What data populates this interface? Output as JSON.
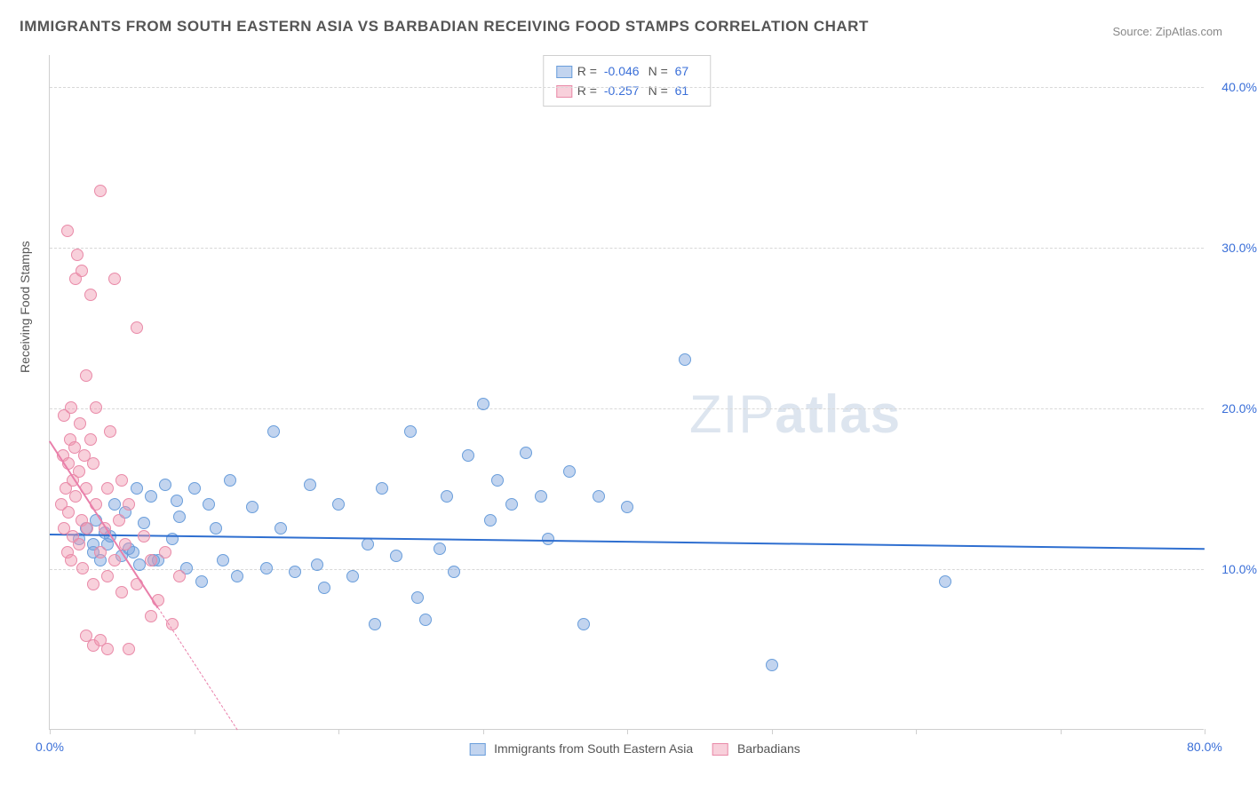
{
  "title": "IMMIGRANTS FROM SOUTH EASTERN ASIA VS BARBADIAN RECEIVING FOOD STAMPS CORRELATION CHART",
  "source": "Source: ZipAtlas.com",
  "y_axis_label": "Receiving Food Stamps",
  "watermark_light": "ZIP",
  "watermark_bold": "atlas",
  "chart": {
    "type": "scatter",
    "background_color": "#ffffff",
    "grid_color": "#d8d8d8",
    "axis_color": "#cfcfcf",
    "tick_label_color": "#3a6fd8",
    "xlim": [
      0,
      80
    ],
    "ylim": [
      0,
      42
    ],
    "x_ticks": [
      0,
      10,
      20,
      30,
      40,
      50,
      60,
      70,
      80
    ],
    "x_tick_labels": {
      "0": "0.0%",
      "80": "80.0%"
    },
    "y_gridlines": [
      10,
      20,
      30,
      40
    ],
    "y_tick_labels": {
      "10": "10.0%",
      "20": "20.0%",
      "30": "30.0%",
      "40": "40.0%"
    },
    "marker_radius": 7,
    "marker_opacity": 0.55,
    "series": [
      {
        "name": "Immigrants from South Eastern Asia",
        "short": "sea",
        "color_fill": "rgba(120,160,220,0.45)",
        "color_stroke": "#6a9edb",
        "R": "-0.046",
        "N": "67",
        "trend": {
          "x1": 0,
          "y1": 12.2,
          "x2": 80,
          "y2": 11.3,
          "solid": true,
          "color": "#2f6fd0",
          "width": 2
        },
        "points": [
          [
            2,
            11.8
          ],
          [
            2.5,
            12.5
          ],
          [
            3,
            11
          ],
          [
            3.2,
            13
          ],
          [
            3.5,
            10.5
          ],
          [
            3.8,
            12.2
          ],
          [
            4,
            11.5
          ],
          [
            4.5,
            14
          ],
          [
            5,
            10.8
          ],
          [
            5.2,
            13.5
          ],
          [
            5.5,
            11.2
          ],
          [
            6,
            15
          ],
          [
            6.2,
            10.2
          ],
          [
            6.5,
            12.8
          ],
          [
            7,
            14.5
          ],
          [
            7.5,
            10.5
          ],
          [
            8,
            15.2
          ],
          [
            8.5,
            11.8
          ],
          [
            9,
            13.2
          ],
          [
            9.5,
            10
          ],
          [
            10,
            15
          ],
          [
            10.5,
            9.2
          ],
          [
            11,
            14
          ],
          [
            12,
            10.5
          ],
          [
            12.5,
            15.5
          ],
          [
            13,
            9.5
          ],
          [
            14,
            13.8
          ],
          [
            15,
            10
          ],
          [
            15.5,
            18.5
          ],
          [
            16,
            12.5
          ],
          [
            17,
            9.8
          ],
          [
            18,
            15.2
          ],
          [
            18.5,
            10.2
          ],
          [
            19,
            8.8
          ],
          [
            20,
            14
          ],
          [
            21,
            9.5
          ],
          [
            22,
            11.5
          ],
          [
            22.5,
            6.5
          ],
          [
            23,
            15
          ],
          [
            24,
            10.8
          ],
          [
            25,
            18.5
          ],
          [
            25.5,
            8.2
          ],
          [
            26,
            6.8
          ],
          [
            27,
            11.2
          ],
          [
            27.5,
            14.5
          ],
          [
            28,
            9.8
          ],
          [
            29,
            17
          ],
          [
            30,
            20.2
          ],
          [
            30.5,
            13
          ],
          [
            31,
            15.5
          ],
          [
            32,
            14
          ],
          [
            33,
            17.2
          ],
          [
            34,
            14.5
          ],
          [
            34.5,
            11.8
          ],
          [
            36,
            16
          ],
          [
            37,
            6.5
          ],
          [
            38,
            14.5
          ],
          [
            40,
            13.8
          ],
          [
            44,
            23
          ],
          [
            50,
            4
          ],
          [
            62,
            9.2
          ],
          [
            3,
            11.5
          ],
          [
            4.2,
            12
          ],
          [
            5.8,
            11
          ],
          [
            7.2,
            10.5
          ],
          [
            8.8,
            14.2
          ],
          [
            11.5,
            12.5
          ]
        ]
      },
      {
        "name": "Barbadians",
        "short": "barb",
        "color_fill": "rgba(240,150,175,0.45)",
        "color_stroke": "#e98aa8",
        "R": "-0.257",
        "N": "61",
        "trend": {
          "x1": 0,
          "y1": 18,
          "x2": 13,
          "y2": 0,
          "solid_until_x": 7.5,
          "color": "#e97faa",
          "width": 1.5
        },
        "points": [
          [
            0.8,
            14
          ],
          [
            0.9,
            17
          ],
          [
            1,
            12.5
          ],
          [
            1,
            19.5
          ],
          [
            1.1,
            15
          ],
          [
            1.2,
            11
          ],
          [
            1.2,
            31
          ],
          [
            1.3,
            16.5
          ],
          [
            1.3,
            13.5
          ],
          [
            1.4,
            18
          ],
          [
            1.5,
            10.5
          ],
          [
            1.5,
            20
          ],
          [
            1.6,
            15.5
          ],
          [
            1.6,
            12
          ],
          [
            1.7,
            17.5
          ],
          [
            1.8,
            28
          ],
          [
            1.8,
            14.5
          ],
          [
            1.9,
            29.5
          ],
          [
            2,
            11.5
          ],
          [
            2,
            16
          ],
          [
            2.1,
            19
          ],
          [
            2.2,
            13
          ],
          [
            2.2,
            28.5
          ],
          [
            2.3,
            10
          ],
          [
            2.4,
            17
          ],
          [
            2.5,
            15
          ],
          [
            2.5,
            22
          ],
          [
            2.6,
            12.5
          ],
          [
            2.8,
            18
          ],
          [
            2.8,
            27
          ],
          [
            3,
            16.5
          ],
          [
            3,
            9
          ],
          [
            3.2,
            14
          ],
          [
            3.2,
            20
          ],
          [
            3.5,
            11
          ],
          [
            3.5,
            33.5
          ],
          [
            3.8,
            12.5
          ],
          [
            4,
            15
          ],
          [
            4,
            9.5
          ],
          [
            4.2,
            18.5
          ],
          [
            4.5,
            10.5
          ],
          [
            4.5,
            28
          ],
          [
            4.8,
            13
          ],
          [
            5,
            8.5
          ],
          [
            5,
            15.5
          ],
          [
            5.2,
            11.5
          ],
          [
            5.5,
            5
          ],
          [
            5.5,
            14
          ],
          [
            6,
            25
          ],
          [
            6,
            9
          ],
          [
            6.5,
            12
          ],
          [
            7,
            7
          ],
          [
            7,
            10.5
          ],
          [
            7.5,
            8
          ],
          [
            8,
            11
          ],
          [
            8.5,
            6.5
          ],
          [
            9,
            9.5
          ],
          [
            3,
            5.2
          ],
          [
            4,
            5
          ],
          [
            3.5,
            5.5
          ],
          [
            2.5,
            5.8
          ]
        ]
      }
    ]
  },
  "bottom_legend": [
    {
      "swatch_fill": "rgba(120,160,220,0.45)",
      "swatch_stroke": "#6a9edb",
      "label": "Immigrants from South Eastern Asia"
    },
    {
      "swatch_fill": "rgba(240,150,175,0.45)",
      "swatch_stroke": "#e98aa8",
      "label": "Barbadians"
    }
  ]
}
